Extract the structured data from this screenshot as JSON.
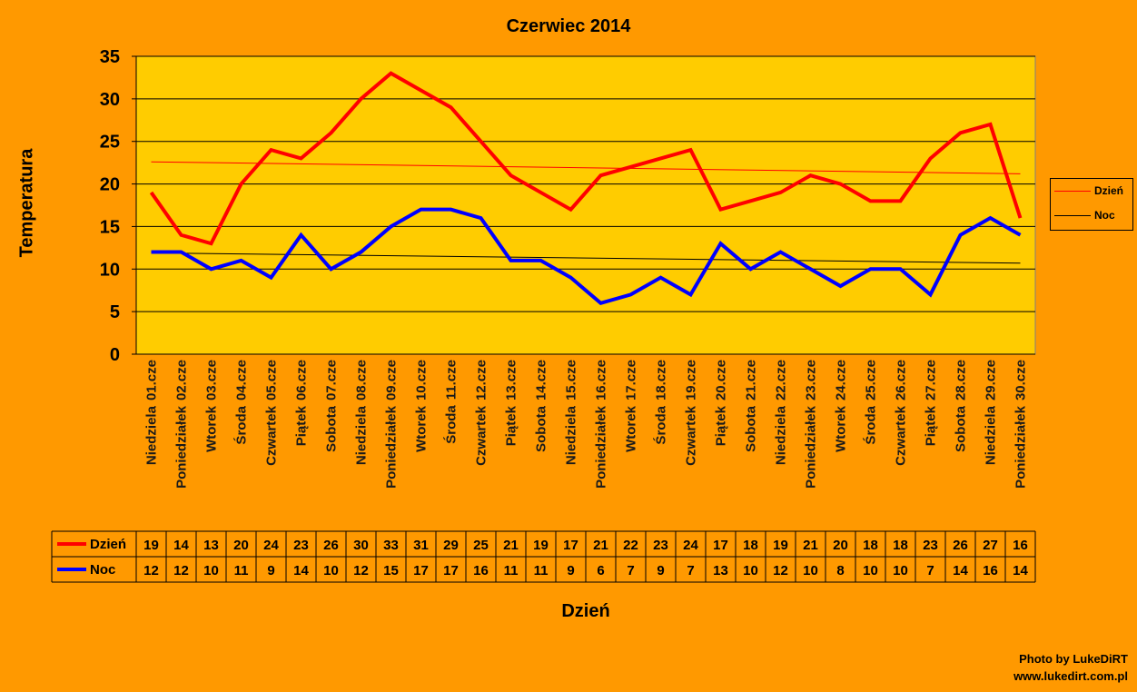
{
  "chart_data": {
    "type": "line",
    "title": "Czerwiec 2014",
    "xlabel": "Dzień",
    "ylabel": "Temperatura",
    "ylim": [
      0,
      35
    ],
    "yticks": [
      0,
      5,
      10,
      15,
      20,
      25,
      30,
      35
    ],
    "grid": true,
    "legend_position": "right",
    "categories": [
      {
        "day": "Niedziela",
        "date": "01.cze"
      },
      {
        "day": "Poniedziałek",
        "date": "02.cze"
      },
      {
        "day": "Wtorek",
        "date": "03.cze"
      },
      {
        "day": "Środa",
        "date": "04.cze"
      },
      {
        "day": "Czwartek",
        "date": "05.cze"
      },
      {
        "day": "Piątek",
        "date": "06.cze"
      },
      {
        "day": "Sobota",
        "date": "07.cze"
      },
      {
        "day": "Niedziela",
        "date": "08.cze"
      },
      {
        "day": "Poniedziałek",
        "date": "09.cze"
      },
      {
        "day": "Wtorek",
        "date": "10.cze"
      },
      {
        "day": "Środa",
        "date": "11.cze"
      },
      {
        "day": "Czwartek",
        "date": "12.cze"
      },
      {
        "day": "Piątek",
        "date": "13.cze"
      },
      {
        "day": "Sobota",
        "date": "14.cze"
      },
      {
        "day": "Niedziela",
        "date": "15.cze"
      },
      {
        "day": "Poniedziałek",
        "date": "16.cze"
      },
      {
        "day": "Wtorek",
        "date": "17.cze"
      },
      {
        "day": "Środa",
        "date": "18.cze"
      },
      {
        "day": "Czwartek",
        "date": "19.cze"
      },
      {
        "day": "Piątek",
        "date": "20.cze"
      },
      {
        "day": "Sobota",
        "date": "21.cze"
      },
      {
        "day": "Niedziela",
        "date": "22.cze"
      },
      {
        "day": "Poniedziałek",
        "date": "23.cze"
      },
      {
        "day": "Wtorek",
        "date": "24.cze"
      },
      {
        "day": "Środa",
        "date": "25.cze"
      },
      {
        "day": "Czwartek",
        "date": "26.cze"
      },
      {
        "day": "Piątek",
        "date": "27.cze"
      },
      {
        "day": "Sobota",
        "date": "28.cze"
      },
      {
        "day": "Niedziela",
        "date": "29.cze"
      },
      {
        "day": "Poniedziałek",
        "date": "30.cze"
      }
    ],
    "series": [
      {
        "name": "Dzień",
        "color": "#FF0000",
        "trend_color": "#FF0000",
        "values": [
          19,
          14,
          13,
          20,
          24,
          23,
          26,
          30,
          33,
          31,
          29,
          25,
          21,
          19,
          17,
          21,
          22,
          23,
          24,
          17,
          18,
          19,
          21,
          20,
          18,
          18,
          23,
          26,
          27,
          16
        ]
      },
      {
        "name": "Noc",
        "color": "#0000FF",
        "trend_color": "#000000",
        "values": [
          12,
          12,
          10,
          11,
          9,
          14,
          10,
          12,
          15,
          17,
          17,
          16,
          11,
          11,
          9,
          6,
          7,
          9,
          7,
          13,
          10,
          12,
          10,
          8,
          10,
          10,
          7,
          14,
          16,
          14
        ]
      }
    ],
    "trendlines": "linear",
    "data_table": true
  },
  "colors": {
    "background": "#FF9900",
    "plot_area": "#FFCC00"
  },
  "credit": {
    "line1": "Photo by LukeDiRT",
    "line2": "www.lukedirt.com.pl"
  }
}
